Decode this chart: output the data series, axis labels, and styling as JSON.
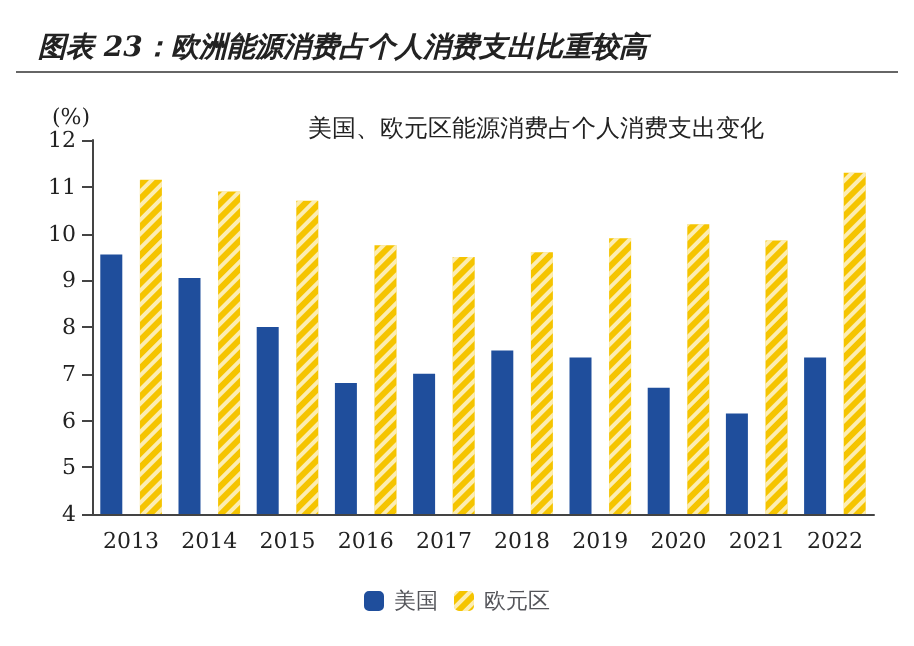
{
  "chart_data": {
    "type": "bar",
    "title": "图表 23：欧洲能源消费占个人消费支出比重较高",
    "subtitle": "美国、欧元区能源消费占个人消费支出变化",
    "ylabel": "(%)",
    "categories": [
      "2013",
      "2014",
      "2015",
      "2016",
      "2017",
      "2018",
      "2019",
      "2020",
      "2021",
      "2022"
    ],
    "series": [
      {
        "name": "美国",
        "color": "#1f4e9c",
        "values": [
          9.55,
          9.05,
          8.0,
          6.8,
          7.0,
          7.5,
          7.35,
          6.7,
          6.15,
          7.35
        ]
      },
      {
        "name": "欧元区",
        "color": "#f5c400",
        "values": [
          11.15,
          10.9,
          10.7,
          9.75,
          9.5,
          9.6,
          9.9,
          10.2,
          9.85,
          11.3
        ]
      }
    ],
    "ylim": [
      4,
      12
    ],
    "yticks": [
      4,
      5,
      6,
      7,
      8,
      9,
      10,
      11,
      12
    ],
    "grid": false,
    "legend": "bottom"
  }
}
